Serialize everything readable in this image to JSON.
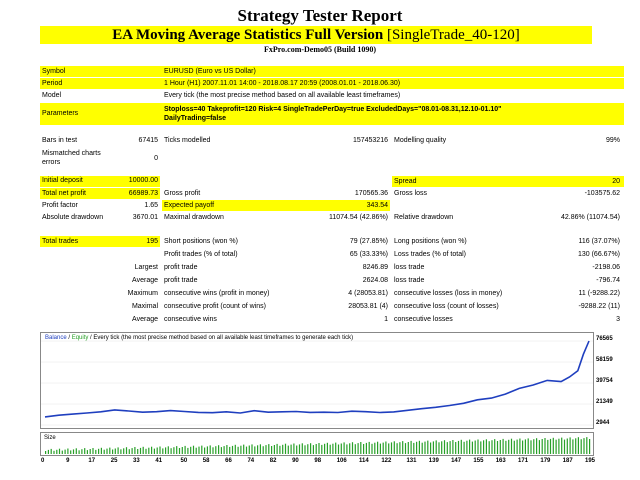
{
  "header": {
    "title": "Strategy Tester Report",
    "subtitle_bold": "EA Moving Average Statistics Full Version",
    "subtitle_rest": " [SingleTrade_40-120]",
    "server": "FxPro.com-Demo05 (Build 1090)"
  },
  "info": {
    "symbol_label": "Symbol",
    "symbol": "EURUSD (Euro vs US Dollar)",
    "period_label": "Period",
    "period": "1 Hour (H1) 2007.11.01 14:00 - 2018.08.17 20:59 (2008.01.01 - 2018.06.30)",
    "model_label": "Model",
    "model": "Every tick (the most precise method based on all available least timeframes)",
    "params_label": "Parameters",
    "params_line1": "Stoploss=40 Takeprofit=120 Risk=4 SingleTradePerDay=true ExcludedDays=\"08.01-08.31,12.10-01.10\"",
    "params_line2": "DailyTrading=false"
  },
  "stats": {
    "bars_label": "Bars in test",
    "bars": "67415",
    "ticks_label": "Ticks modelled",
    "ticks": "157453216",
    "quality_label": "Modelling quality",
    "quality": "99%",
    "mismatch_label1": "Mismatched charts",
    "mismatch_label2": "errors",
    "mismatch": "0",
    "deposit_label": "Initial deposit",
    "deposit": "10000.00",
    "spread_label": "Spread",
    "spread": "20",
    "netprofit_label": "Total net profit",
    "netprofit": "66989.73",
    "grossprofit_label": "Gross profit",
    "grossprofit": "170565.36",
    "grossloss_label": "Gross loss",
    "grossloss": "-103575.62",
    "pf_label": "Profit factor",
    "pf": "1.65",
    "ep_label": "Expected payoff",
    "ep": "343.54",
    "absdd_label": "Absolute drawdown",
    "absdd": "3670.01",
    "maxdd_label": "Maximal drawdown",
    "maxdd": "11074.54 (42.86%)",
    "reldd_label": "Relative drawdown",
    "reldd": "42.86% (11074.54)",
    "trades_label": "Total trades",
    "trades": "195",
    "short_label": "Short positions (won %)",
    "short": "79 (27.85%)",
    "long_label": "Long positions (won %)",
    "long": "116 (37.07%)",
    "ptrades_label": "Profit trades (% of total)",
    "ptrades": "65 (33.33%)",
    "ltrades_label": "Loss trades (% of total)",
    "ltrades": "130 (66.67%)",
    "largest": "Largest",
    "lp_label": "profit trade",
    "lp": "8246.89",
    "ll_label": "loss trade",
    "ll": "-2198.06",
    "average": "Average",
    "ap_label": "profit trade",
    "ap": "2624.08",
    "al_label": "loss trade",
    "al": "-796.74",
    "maximum": "Maximum",
    "mcw_label": "consecutive wins (profit in money)",
    "mcw": "4 (28053.81)",
    "mcl_label": "consecutive losses (loss in money)",
    "mcl": "11 (-9288.22)",
    "maximal": "Maximal",
    "mcp_label": "consecutive profit (count of wins)",
    "mcp": "28053.81 (4)",
    "mclc_label": "consecutive loss (count of losses)",
    "mclc": "-9288.22 (11)",
    "average2": "Average",
    "acw_label": "consecutive wins",
    "acw": "1",
    "acl_label": "consecutive losses",
    "acl": "3"
  },
  "chart_data": {
    "type": "line",
    "legend_balance": "Balance",
    "legend_sep": " / ",
    "legend_equity": "Equity",
    "legend_rest": " / Every tick (the most precise method based on all available least timeframes to generate each tick)",
    "size_label": "Size",
    "y_ticks": [
      "76565",
      "58159",
      "39754",
      "21349",
      "2944"
    ],
    "x_ticks": [
      "0",
      "9",
      "17",
      "25",
      "33",
      "41",
      "50",
      "58",
      "66",
      "74",
      "82",
      "90",
      "98",
      "106",
      "114",
      "122",
      "131",
      "139",
      "147",
      "155",
      "163",
      "171",
      "179",
      "187",
      "195"
    ],
    "ylim": [
      2944,
      76565
    ],
    "x": [
      0,
      5,
      10,
      15,
      20,
      25,
      30,
      35,
      40,
      45,
      50,
      55,
      60,
      65,
      70,
      75,
      80,
      85,
      90,
      95,
      100,
      105,
      110,
      115,
      120,
      125,
      130,
      135,
      140,
      145,
      150,
      155,
      160,
      165,
      170,
      175,
      180,
      185,
      188,
      191,
      193,
      195
    ],
    "balance": [
      10000,
      11500,
      12500,
      13500,
      14500,
      16200,
      15200,
      14200,
      14600,
      15600,
      14800,
      14000,
      13700,
      14500,
      13500,
      15500,
      14200,
      14500,
      14800,
      14000,
      14200,
      13900,
      15000,
      14600,
      13900,
      14400,
      15800,
      17200,
      18500,
      20000,
      22000,
      25000,
      26500,
      30000,
      35000,
      38000,
      42000,
      41000,
      45000,
      50500,
      65000,
      76565
    ],
    "color_balance": "#1f3fbf",
    "color_equity": "#28a028",
    "color_size": "#28a028"
  }
}
